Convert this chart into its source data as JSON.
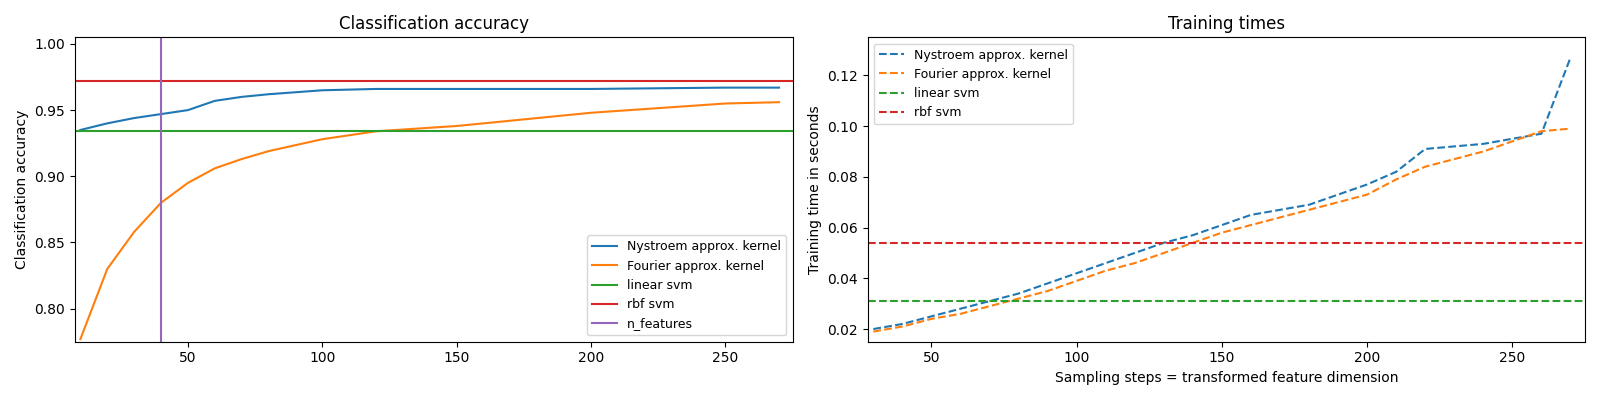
{
  "title_left": "Classification accuracy",
  "title_right": "Training times",
  "ylabel_left": "Classification accuracy",
  "ylabel_right": "Training time in seconds",
  "xlabel_right": "Sampling steps = transformed feature dimension",
  "acc_n_components": [
    10,
    20,
    30,
    40,
    50,
    60,
    70,
    80,
    100,
    120,
    150,
    200,
    250,
    270
  ],
  "acc_nystroem": [
    0.935,
    0.94,
    0.944,
    0.947,
    0.95,
    0.957,
    0.96,
    0.962,
    0.965,
    0.966,
    0.966,
    0.966,
    0.967,
    0.967
  ],
  "acc_fourier": [
    0.777,
    0.83,
    0.858,
    0.88,
    0.895,
    0.906,
    0.913,
    0.919,
    0.928,
    0.934,
    0.938,
    0.948,
    0.955,
    0.956
  ],
  "acc_linear_svm": 0.934,
  "acc_rbf_svm": 0.972,
  "acc_n_features": 40,
  "time_n_components": [
    30,
    40,
    50,
    60,
    70,
    80,
    90,
    100,
    110,
    120,
    130,
    140,
    150,
    160,
    170,
    180,
    190,
    200,
    210,
    220,
    230,
    240,
    250,
    260,
    270
  ],
  "time_nystroem": [
    0.02,
    0.022,
    0.025,
    0.028,
    0.031,
    0.034,
    0.038,
    0.042,
    0.046,
    0.05,
    0.054,
    0.057,
    0.061,
    0.065,
    0.067,
    0.069,
    0.073,
    0.077,
    0.082,
    0.091,
    0.092,
    0.093,
    0.095,
    0.097,
    0.127
  ],
  "time_fourier": [
    0.019,
    0.021,
    0.024,
    0.026,
    0.029,
    0.032,
    0.035,
    0.039,
    0.043,
    0.046,
    0.05,
    0.054,
    0.058,
    0.061,
    0.064,
    0.067,
    0.07,
    0.073,
    0.079,
    0.084,
    0.087,
    0.09,
    0.094,
    0.098,
    0.099
  ],
  "time_linear_svm": 0.031,
  "time_rbf_svm": 0.054,
  "color_nystroem": "#1f77b4",
  "color_fourier": "#ff7f0e",
  "color_linear": "#2ca02c",
  "color_rbf": "#d62728",
  "color_n_features": "#9467bd",
  "acc_ylim": [
    0.775,
    1.005
  ],
  "acc_xlim": [
    8,
    275
  ],
  "time_ylim": [
    0.015,
    0.135
  ],
  "time_xlim": [
    28,
    275
  ]
}
